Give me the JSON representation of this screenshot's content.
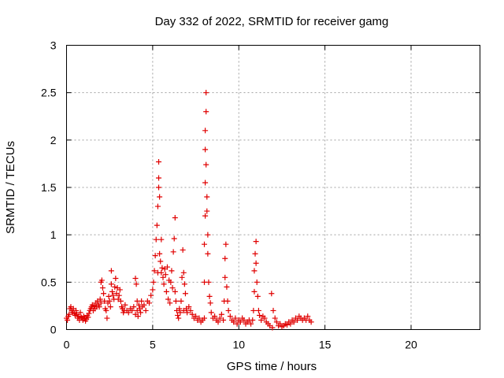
{
  "chart_data": {
    "type": "scatter",
    "title": "Day 332 of 2022, SRMTID for receiver gamg",
    "xlabel": "GPS time / hours",
    "ylabel": "SRMTID / TECUs",
    "xlim": [
      0,
      24
    ],
    "ylim": [
      0,
      3
    ],
    "xticks": [
      0,
      5,
      10,
      15,
      20
    ],
    "yticks": [
      0,
      0.5,
      1,
      1.5,
      2,
      2.5,
      3
    ],
    "xtick_labels": [
      "0",
      "5",
      "10",
      "15",
      "20"
    ],
    "ytick_labels": [
      "0",
      "0.5",
      "1",
      "1.5",
      "2",
      "2.5",
      "3"
    ],
    "grid": true,
    "marker": "+",
    "series": [
      {
        "name": "gamg",
        "color": "#e00000",
        "x": [
          0.0,
          0.05,
          0.1,
          0.15,
          0.2,
          0.25,
          0.3,
          0.35,
          0.4,
          0.45,
          0.5,
          0.55,
          0.6,
          0.65,
          0.7,
          0.75,
          0.8,
          0.85,
          0.9,
          0.95,
          1.0,
          1.05,
          1.1,
          1.15,
          1.2,
          1.25,
          1.3,
          1.35,
          1.4,
          1.45,
          1.5,
          1.55,
          1.6,
          1.65,
          1.7,
          1.75,
          1.8,
          1.85,
          1.9,
          1.95,
          2.0,
          2.0,
          2.05,
          2.1,
          2.15,
          2.2,
          2.25,
          2.3,
          2.35,
          2.4,
          2.45,
          2.5,
          2.55,
          2.6,
          2.6,
          2.65,
          2.7,
          2.75,
          2.8,
          2.85,
          2.9,
          2.95,
          3.0,
          3.05,
          3.1,
          3.15,
          3.2,
          3.25,
          3.3,
          3.35,
          3.4,
          3.5,
          3.6,
          3.7,
          3.8,
          3.9,
          4.0,
          4.0,
          4.05,
          4.1,
          4.1,
          4.15,
          4.2,
          4.25,
          4.3,
          4.35,
          4.4,
          4.5,
          4.6,
          4.7,
          4.8,
          4.9,
          5.0,
          5.05,
          5.1,
          5.15,
          5.2,
          5.25,
          5.3,
          5.3,
          5.35,
          5.35,
          5.35,
          5.4,
          5.4,
          5.45,
          5.5,
          5.5,
          5.55,
          5.6,
          5.65,
          5.7,
          5.75,
          5.8,
          5.85,
          5.9,
          5.95,
          6.0,
          6.05,
          6.1,
          6.15,
          6.2,
          6.25,
          6.3,
          6.3,
          6.35,
          6.4,
          6.45,
          6.5,
          6.55,
          6.6,
          6.65,
          6.7,
          6.75,
          6.8,
          6.8,
          6.85,
          6.9,
          6.95,
          7.0,
          7.1,
          7.2,
          7.3,
          7.4,
          7.5,
          7.6,
          7.7,
          7.8,
          7.9,
          8.0,
          8.0,
          8.0,
          8.05,
          8.05,
          8.05,
          8.05,
          8.1,
          8.1,
          8.1,
          8.15,
          8.15,
          8.2,
          8.2,
          8.25,
          8.3,
          8.35,
          8.4,
          8.5,
          8.6,
          8.7,
          8.8,
          8.9,
          9.0,
          9.1,
          9.15,
          9.2,
          9.2,
          9.25,
          9.3,
          9.35,
          9.4,
          9.5,
          9.6,
          9.7,
          9.8,
          9.9,
          10.0,
          10.1,
          10.2,
          10.3,
          10.4,
          10.5,
          10.6,
          10.7,
          10.8,
          10.85,
          10.9,
          10.9,
          10.95,
          11.0,
          11.0,
          11.05,
          11.1,
          11.15,
          11.2,
          11.3,
          11.4,
          11.5,
          11.6,
          11.7,
          11.8,
          11.9,
          11.95,
          12.0,
          12.1,
          12.2,
          12.3,
          12.4,
          12.5,
          12.6,
          12.7,
          12.8,
          12.9,
          13.0,
          13.1,
          13.2,
          13.3,
          13.4,
          13.5,
          13.6,
          13.7,
          13.8,
          13.9,
          14.0,
          14.1,
          14.2
        ],
        "y": [
          0.12,
          0.1,
          0.14,
          0.16,
          0.22,
          0.24,
          0.2,
          0.18,
          0.22,
          0.17,
          0.15,
          0.2,
          0.16,
          0.12,
          0.14,
          0.1,
          0.18,
          0.13,
          0.12,
          0.1,
          0.14,
          0.12,
          0.09,
          0.11,
          0.15,
          0.13,
          0.17,
          0.2,
          0.22,
          0.24,
          0.26,
          0.2,
          0.25,
          0.22,
          0.28,
          0.24,
          0.3,
          0.26,
          0.24,
          0.32,
          0.5,
          0.28,
          0.52,
          0.44,
          0.38,
          0.3,
          0.22,
          0.2,
          0.12,
          0.28,
          0.35,
          0.3,
          0.24,
          0.62,
          0.48,
          0.4,
          0.36,
          0.32,
          0.45,
          0.54,
          0.38,
          0.44,
          0.32,
          0.36,
          0.42,
          0.3,
          0.24,
          0.22,
          0.18,
          0.2,
          0.26,
          0.2,
          0.18,
          0.22,
          0.2,
          0.24,
          0.16,
          0.54,
          0.48,
          0.3,
          0.2,
          0.14,
          0.26,
          0.22,
          0.18,
          0.3,
          0.24,
          0.26,
          0.2,
          0.3,
          0.28,
          0.36,
          0.42,
          0.5,
          0.62,
          0.78,
          0.95,
          1.1,
          1.3,
          0.6,
          1.5,
          1.6,
          1.77,
          1.4,
          0.8,
          0.72,
          0.95,
          0.6,
          0.65,
          0.55,
          0.48,
          0.64,
          0.58,
          0.4,
          0.66,
          0.32,
          0.52,
          0.28,
          0.5,
          0.62,
          0.44,
          0.82,
          0.96,
          1.18,
          0.4,
          0.3,
          0.2,
          0.15,
          0.12,
          0.22,
          0.18,
          0.3,
          0.55,
          0.84,
          0.6,
          0.2,
          0.48,
          0.38,
          0.22,
          0.18,
          0.24,
          0.2,
          0.16,
          0.12,
          0.14,
          0.1,
          0.12,
          0.08,
          0.1,
          0.12,
          0.5,
          0.9,
          1.2,
          1.55,
          1.9,
          2.1,
          2.3,
          2.5,
          1.74,
          1.4,
          1.25,
          1.0,
          0.8,
          0.5,
          0.35,
          0.28,
          0.18,
          0.12,
          0.14,
          0.1,
          0.08,
          0.12,
          0.16,
          0.1,
          0.3,
          0.55,
          0.75,
          0.9,
          0.45,
          0.3,
          0.2,
          0.14,
          0.1,
          0.08,
          0.12,
          0.06,
          0.1,
          0.08,
          0.12,
          0.1,
          0.06,
          0.08,
          0.1,
          0.06,
          0.1,
          0.2,
          0.4,
          0.62,
          0.8,
          0.93,
          0.7,
          0.5,
          0.35,
          0.2,
          0.15,
          0.1,
          0.14,
          0.12,
          0.08,
          0.06,
          0.04,
          0.38,
          0.02,
          0.2,
          0.12,
          0.08,
          0.04,
          0.06,
          0.03,
          0.04,
          0.06,
          0.05,
          0.08,
          0.06,
          0.1,
          0.08,
          0.12,
          0.1,
          0.14,
          0.12,
          0.1,
          0.12,
          0.1,
          0.14,
          0.1,
          0.08
        ]
      }
    ]
  }
}
